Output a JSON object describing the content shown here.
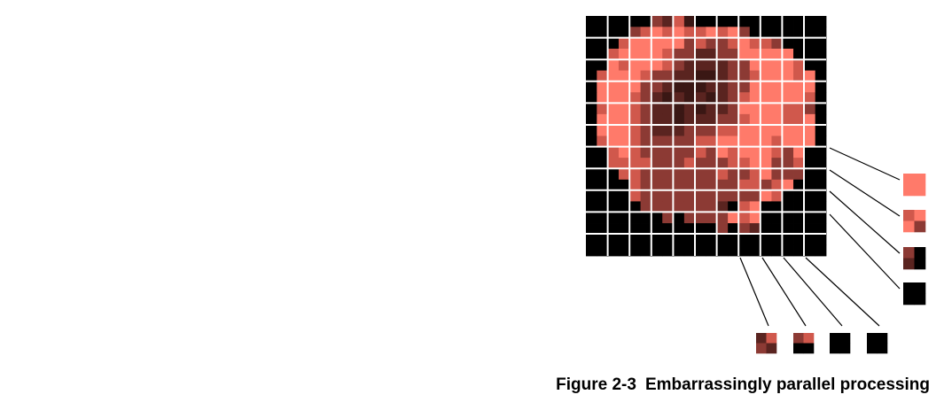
{
  "figure": {
    "number": "Figure 2-3",
    "caption": "Embarrassingly parallel processing"
  },
  "colors": {
    "background": "#000000",
    "light": "#ff7a6a",
    "mid": "#d0584c",
    "dark": "#8c3a34",
    "darker": "#5a2420",
    "darkest": "#3a1714",
    "grid": "#ffffff",
    "leader": "#000000"
  },
  "image_grid": {
    "tiles": 11,
    "subpixels_per_tile": 2,
    "pixels": [
      "KKKKKKDOMEKKKKKKKKKKKK",
      "KKKKDMLMLMMLMLDKKKKKKK",
      "KKKMLLLLLDMDDMLMMDKKKK",
      "KKMLLLLMDDOODDLLLLLKKK",
      "KKLMLLLMDOOOODDLLLLMKK",
      "KMLLLMDDOOEEODDMLLLMLK",
      "KLLLLDDOEEEOODDLLLLLLK",
      "KLLLMDOEOEOEODMLLLLLMK",
      "KMLLMDOOEOEOODLLLLMMDK",
      "KLLLMDOOEOOODDMLLLMMLK",
      "KLLLMDOOODDDMMLLLLLLLK",
      "KMLLMDDDDDMMLLLLLMLLLK",
      "KKMLMDDDDDMDLMLLLMDLKK",
      "KKMMMMDDDMDDDMMLLDDMKK",
      "KKKMMDDDDDDDMDDMLDDDKK",
      "KKKKMDDDDDDDDDMMDMLKKK",
      "KKKKMDDDDDDDDDDDLMKKKK",
      "KKKKKDDDDDDDOKMLKKKKKK",
      "KKKKKKKDKDDDDLMLKKKKKK",
      "KKKKKKKKKKKKDKDOKKKKKK",
      "KKKKKKKKKKKKKKKKKKKKKK",
      "KKKKKKKKKKKKKKKKKKKKKK"
    ]
  },
  "extracted_tiles": {
    "right": [
      [
        "L",
        "L",
        "L",
        "L"
      ],
      [
        "M",
        "L",
        "L",
        "D"
      ],
      [
        "D",
        "K",
        "O",
        "K"
      ],
      [
        "K",
        "K",
        "K",
        "K"
      ]
    ],
    "bottom": [
      [
        "O",
        "M",
        "D",
        "O"
      ],
      [
        "D",
        "M",
        "K",
        "K"
      ],
      [
        "K",
        "K",
        "K",
        "K"
      ],
      [
        "K",
        "K",
        "K",
        "K"
      ]
    ]
  }
}
